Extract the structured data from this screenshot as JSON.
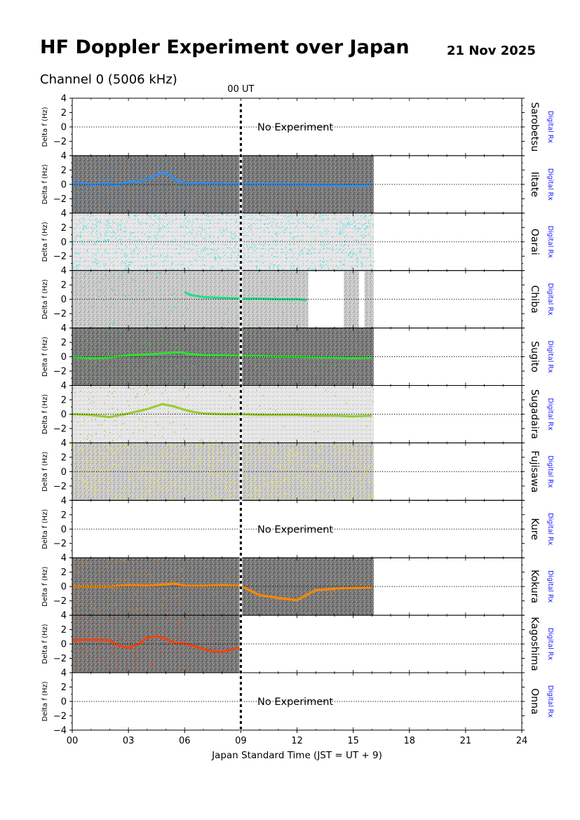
{
  "header": {
    "title": "HF Doppler Experiment over Japan",
    "date": "21 Nov 2025",
    "channel": "Channel 0 (5006 kHz)"
  },
  "chart_data": {
    "type": "scatter",
    "xlabel": "Japan Standard Time (JST = UT + 9)",
    "ylabel": "Delta f (Hz)",
    "xlim": [
      0,
      24
    ],
    "ylim": [
      -4,
      4
    ],
    "x_ticks": [
      0,
      3,
      6,
      9,
      12,
      15,
      18,
      21,
      24
    ],
    "x_tick_labels": [
      "00",
      "03",
      "06",
      "09",
      "12",
      "15",
      "18",
      "21",
      "24"
    ],
    "y_ticks": [
      4,
      2,
      0,
      -2,
      -4
    ],
    "y_tick_labels": [
      "4",
      "2",
      "0",
      "−2",
      "−4"
    ],
    "ut_marker": {
      "x": 9,
      "label": "00 UT"
    },
    "receiver_label": "Digital Rx",
    "no_experiment_text": "No Experiment",
    "stations": [
      {
        "name": "Sarobetsu",
        "status": "no-experiment"
      },
      {
        "name": "Iitate",
        "status": "data",
        "start": 0,
        "end": 16.1,
        "color": "#2f8fef",
        "trace": [
          [
            0,
            0
          ],
          [
            0.6,
            0.1
          ],
          [
            1.2,
            -0.1
          ],
          [
            1.8,
            0.2
          ],
          [
            2.4,
            -0.2
          ],
          [
            3,
            0.3
          ],
          [
            3.6,
            0.4
          ],
          [
            4.2,
            0.9
          ],
          [
            4.8,
            1.7
          ],
          [
            5.2,
            1.3
          ],
          [
            5.6,
            0.5
          ],
          [
            6,
            0.1
          ],
          [
            7,
            0.1
          ],
          [
            8,
            0.1
          ],
          [
            9,
            0
          ],
          [
            10,
            0
          ],
          [
            11,
            0
          ],
          [
            12,
            0
          ],
          [
            13,
            -0.1
          ],
          [
            14,
            -0.1
          ],
          [
            15,
            -0.2
          ],
          [
            16,
            -0.1
          ]
        ]
      },
      {
        "name": "Oarai",
        "status": "data",
        "start": 0,
        "end": 16.1,
        "color": "#33e6ee",
        "trace": []
      },
      {
        "name": "Chiba",
        "status": "data",
        "start": 0,
        "end": 16.1,
        "color": "#22dd88",
        "gaps": [
          [
            12.6,
            14.5
          ],
          [
            15.3,
            15.6
          ]
        ],
        "trace": [
          [
            6,
            1.0
          ],
          [
            6.3,
            0.6
          ],
          [
            7,
            0.3
          ],
          [
            8,
            0.2
          ],
          [
            9,
            0.1
          ],
          [
            10,
            0.1
          ],
          [
            11,
            0.0
          ],
          [
            12,
            0.0
          ],
          [
            12.5,
            -0.1
          ]
        ]
      },
      {
        "name": "Sugito",
        "status": "data",
        "start": 0,
        "end": 16.1,
        "color": "#33dd33",
        "trace": [
          [
            0,
            0
          ],
          [
            1,
            -0.2
          ],
          [
            2,
            -0.1
          ],
          [
            3,
            0.2
          ],
          [
            4,
            0.3
          ],
          [
            5,
            0.5
          ],
          [
            5.8,
            0.6
          ],
          [
            6.2,
            0.4
          ],
          [
            7,
            0.2
          ],
          [
            8,
            0.2
          ],
          [
            9,
            0.1
          ],
          [
            10,
            0.1
          ],
          [
            11,
            0.0
          ],
          [
            12,
            0.0
          ],
          [
            13,
            -0.1
          ],
          [
            14,
            -0.1
          ],
          [
            15,
            -0.2
          ],
          [
            16,
            -0.1
          ]
        ]
      },
      {
        "name": "Sugadaira",
        "status": "data",
        "start": 0,
        "end": 16.1,
        "color": "#99cc33",
        "trace": [
          [
            0,
            0
          ],
          [
            1,
            -0.1
          ],
          [
            2,
            -0.4
          ],
          [
            3,
            0.1
          ],
          [
            4,
            0.7
          ],
          [
            4.8,
            1.4
          ],
          [
            5.4,
            1.1
          ],
          [
            6,
            0.6
          ],
          [
            6.5,
            0.3
          ],
          [
            7,
            0.1
          ],
          [
            8,
            0.0
          ],
          [
            9,
            0.0
          ],
          [
            10,
            -0.1
          ],
          [
            11,
            -0.1
          ],
          [
            12,
            -0.1
          ],
          [
            13,
            -0.2
          ],
          [
            14,
            -0.2
          ],
          [
            15,
            -0.3
          ],
          [
            16,
            -0.2
          ]
        ]
      },
      {
        "name": "Fujisawa",
        "status": "data",
        "start": 0,
        "end": 16.1,
        "color": "#eeee33",
        "trace": []
      },
      {
        "name": "Kure",
        "status": "no-experiment"
      },
      {
        "name": "Kokura",
        "status": "data",
        "start": 0,
        "end": 16.1,
        "color": "#ff8800",
        "trace": [
          [
            0,
            0
          ],
          [
            1,
            0
          ],
          [
            2,
            0
          ],
          [
            3,
            0.2
          ],
          [
            4,
            0.1
          ],
          [
            5,
            0.3
          ],
          [
            5.5,
            0.4
          ],
          [
            6,
            0.1
          ],
          [
            7,
            0.1
          ],
          [
            8,
            0.2
          ],
          [
            9,
            0.1
          ],
          [
            10,
            -1.2
          ],
          [
            11,
            -1.6
          ],
          [
            12,
            -1.9
          ],
          [
            13,
            -0.5
          ],
          [
            14,
            -0.3
          ],
          [
            15,
            -0.2
          ],
          [
            16,
            -0.1
          ]
        ]
      },
      {
        "name": "Kagoshima",
        "status": "data",
        "start": 0,
        "end": 9,
        "color": "#ee4411",
        "trace": [
          [
            0,
            0.5
          ],
          [
            1,
            0.6
          ],
          [
            2,
            0.5
          ],
          [
            2.5,
            -0.3
          ],
          [
            3,
            -0.5
          ],
          [
            3.5,
            -0.1
          ],
          [
            4,
            0.9
          ],
          [
            4.5,
            1.1
          ],
          [
            5,
            0.7
          ],
          [
            5.5,
            0.1
          ],
          [
            6,
            0.1
          ],
          [
            7,
            -0.7
          ],
          [
            7.5,
            -1.0
          ],
          [
            8,
            -1.1
          ],
          [
            8.5,
            -0.8
          ],
          [
            9,
            -0.5
          ]
        ]
      },
      {
        "name": "Onna",
        "status": "no-experiment"
      }
    ]
  }
}
